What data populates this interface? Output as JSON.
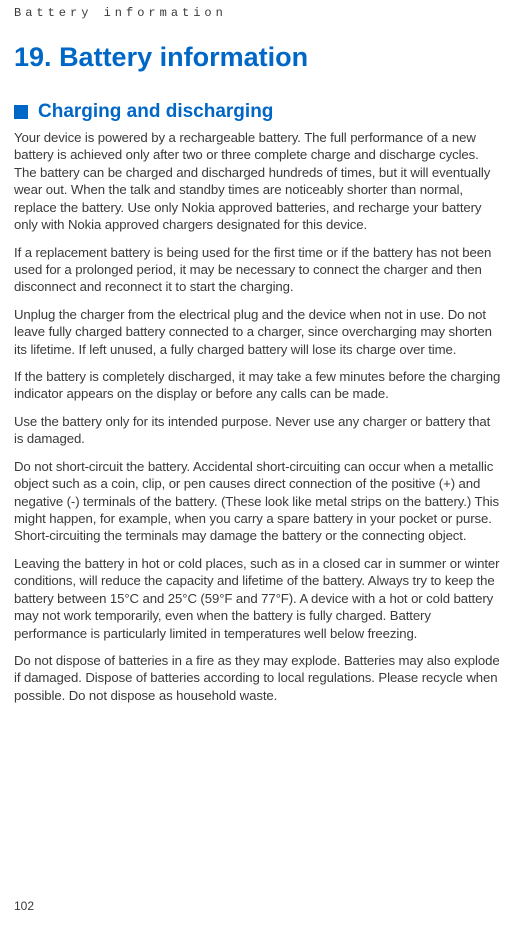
{
  "running_header": "Battery information",
  "chapter": {
    "number": "19.",
    "title": "Battery information"
  },
  "section": {
    "heading": "Charging and discharging"
  },
  "paragraphs": [
    "Your device is powered by a rechargeable battery. The full performance of a new battery is achieved only after two or three complete charge and discharge cycles. The battery can be charged and discharged hundreds of times, but it will eventually wear out. When the talk and standby times are noticeably shorter than normal, replace the battery. Use only Nokia approved batteries, and recharge your battery only with Nokia approved chargers designated for this device.",
    "If a replacement battery is being used for the first time or if the battery has not been used for a prolonged period, it may be necessary to connect the charger and then disconnect and reconnect it to start the charging.",
    "Unplug the charger from the electrical plug and the device when not in use. Do not leave fully charged battery connected to a charger, since overcharging may shorten its lifetime. If left unused, a fully charged battery will lose its charge over time.",
    "If the battery is completely discharged, it may take a few minutes before the charging indicator appears on the display or before any calls can be made.",
    "Use the battery only for its intended purpose. Never use any charger or battery that is damaged.",
    "Do not short-circuit the battery. Accidental short-circuiting can occur when a metallic object such as a coin, clip, or pen causes direct connection of the positive (+) and negative (-) terminals of the battery. (These look like metal strips on the battery.) This might happen, for example, when you carry a spare battery in your pocket or purse. Short-circuiting the terminals may damage the battery or the connecting object.",
    "Leaving the battery in hot or cold places, such as in a closed car in summer or winter conditions, will reduce the capacity and lifetime of the battery. Always try to keep the battery between 15°C and 25°C (59°F and 77°F). A device with a hot or cold battery may not work temporarily, even when the battery is fully charged. Battery performance is particularly limited in temperatures well below freezing.",
    "Do not dispose of batteries in a fire as they may explode. Batteries may also explode if damaged. Dispose of batteries according to local regulations. Please recycle when possible. Do not dispose as household waste."
  ],
  "page_number": "102",
  "colors": {
    "accent": "#0067c6",
    "body_text": "#3a3a3a",
    "background": "#ffffff"
  },
  "typography": {
    "running_header_font": "Courier New",
    "running_header_size_pt": 9,
    "chapter_title_size_pt": 20,
    "section_heading_size_pt": 14,
    "body_size_pt": 10
  }
}
